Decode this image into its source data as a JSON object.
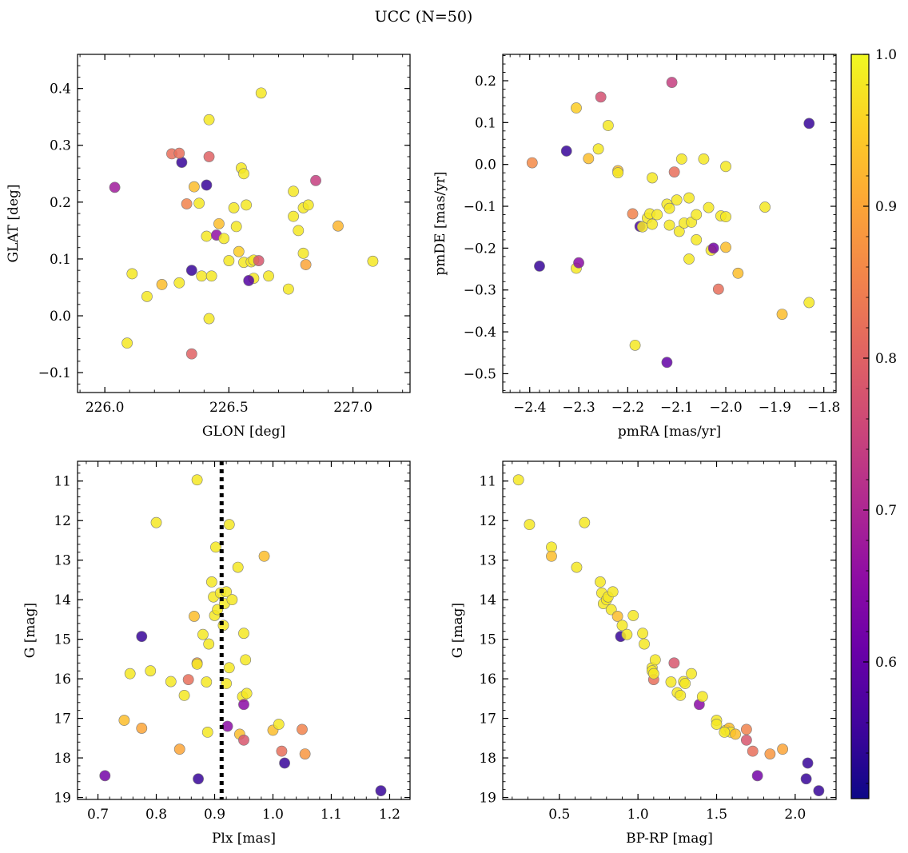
{
  "chart_data": {
    "type": "scatter",
    "title": "UCC (N=50)",
    "colorbar": {
      "colormap": "plasma",
      "range": [
        0.51,
        1.0
      ],
      "ticks": [
        "0.6",
        "0.7",
        "0.8",
        "0.9",
        "1.0"
      ],
      "tick_values": [
        0.6,
        0.7,
        0.8,
        0.9,
        1.0
      ],
      "colors": [
        "#0d0887",
        "#41049d",
        "#6a00a8",
        "#8f0da4",
        "#b12a90",
        "#cc4778",
        "#e16462",
        "#f2844b",
        "#fca636",
        "#fcce25",
        "#f0f921"
      ]
    },
    "panels": [
      {
        "id": "sky",
        "xlabel": "GLON [deg]",
        "ylabel": "GLAT [deg]",
        "xlim": [
          225.89,
          227.23
        ],
        "ylim": [
          -0.135,
          0.46
        ],
        "invert_y": false,
        "xticks": [
          "226.0",
          "226.5",
          "227.0"
        ],
        "xtick_values": [
          226.0,
          226.5,
          227.0
        ],
        "yticks": [
          "−0.1",
          "0.0",
          "0.1",
          "0.2",
          "0.3",
          "0.4"
        ],
        "ytick_values": [
          -0.1,
          0.0,
          0.1,
          0.2,
          0.3,
          0.4
        ],
        "points": [
          [
            226.04,
            0.226,
            0.68
          ],
          [
            226.09,
            -0.048,
            0.98
          ],
          [
            226.11,
            0.074,
            0.98
          ],
          [
            226.17,
            0.034,
            0.98
          ],
          [
            226.23,
            0.055,
            0.93
          ],
          [
            226.27,
            0.285,
            0.82
          ],
          [
            226.3,
            0.058,
            0.98
          ],
          [
            226.31,
            0.27,
            0.55
          ],
          [
            226.33,
            0.197,
            0.85
          ],
          [
            226.35,
            0.08,
            0.55
          ],
          [
            226.36,
            0.227,
            0.93
          ],
          [
            226.38,
            0.198,
            0.98
          ],
          [
            226.39,
            0.07,
            0.98
          ],
          [
            226.41,
            0.14,
            0.98
          ],
          [
            226.41,
            0.23,
            0.55
          ],
          [
            226.42,
            0.345,
            0.98
          ],
          [
            226.42,
            0.28,
            0.8
          ],
          [
            226.43,
            0.07,
            0.98
          ],
          [
            226.45,
            0.142,
            0.66
          ],
          [
            226.46,
            0.162,
            0.93
          ],
          [
            226.48,
            0.136,
            0.98
          ],
          [
            226.5,
            0.097,
            0.98
          ],
          [
            226.52,
            0.19,
            0.98
          ],
          [
            226.53,
            0.157,
            0.98
          ],
          [
            226.54,
            0.113,
            0.95
          ],
          [
            226.55,
            0.26,
            0.98
          ],
          [
            226.56,
            0.25,
            0.98
          ],
          [
            226.56,
            0.094,
            0.98
          ],
          [
            226.57,
            0.195,
            0.98
          ],
          [
            226.59,
            0.095,
            0.98
          ],
          [
            226.6,
            0.098,
            0.98
          ],
          [
            226.6,
            0.066,
            0.98
          ],
          [
            226.62,
            0.097,
            0.78
          ],
          [
            226.63,
            0.392,
            0.98
          ],
          [
            226.66,
            0.07,
            0.98
          ],
          [
            226.74,
            0.047,
            0.98
          ],
          [
            226.76,
            0.219,
            0.98
          ],
          [
            226.76,
            0.175,
            0.98
          ],
          [
            226.78,
            0.15,
            0.98
          ],
          [
            226.8,
            0.11,
            0.98
          ],
          [
            226.8,
            0.19,
            0.98
          ],
          [
            226.81,
            0.09,
            0.9
          ],
          [
            226.82,
            0.195,
            0.98
          ],
          [
            226.85,
            0.238,
            0.74
          ],
          [
            226.94,
            0.158,
            0.92
          ],
          [
            227.08,
            0.096,
            0.98
          ],
          [
            226.42,
            -0.005,
            0.98
          ],
          [
            226.35,
            -0.067,
            0.8
          ],
          [
            226.58,
            0.062,
            0.58
          ],
          [
            226.3,
            0.286,
            0.82
          ]
        ]
      },
      {
        "id": "pm",
        "xlabel": "pmRA [mas/yr]",
        "ylabel": "pmDE [mas/yr]",
        "xlim": [
          -2.455,
          -1.775
        ],
        "ylim": [
          -0.545,
          0.263
        ],
        "invert_y": false,
        "xticks": [
          "−2.4",
          "−2.3",
          "−2.2",
          "−2.1",
          "−2.0",
          "−1.9",
          "−1.8"
        ],
        "xtick_values": [
          -2.4,
          -2.3,
          -2.2,
          -2.1,
          -2.0,
          -1.9,
          -1.8
        ],
        "yticks": [
          "−0.5",
          "−0.4",
          "−0.3",
          "−0.2",
          "−0.1",
          "0.0",
          "0.1",
          "0.2"
        ],
        "ytick_values": [
          -0.5,
          -0.4,
          -0.3,
          -0.2,
          -0.1,
          0.0,
          0.1,
          0.2
        ],
        "points": [
          [
            -2.395,
            0.004,
            0.86
          ],
          [
            -2.38,
            -0.243,
            0.55
          ],
          [
            -2.325,
            0.032,
            0.55
          ],
          [
            -2.305,
            0.135,
            0.95
          ],
          [
            -2.305,
            -0.248,
            0.98
          ],
          [
            -2.3,
            -0.235,
            0.65
          ],
          [
            -2.28,
            0.014,
            0.93
          ],
          [
            -2.26,
            0.037,
            0.98
          ],
          [
            -2.255,
            0.161,
            0.77
          ],
          [
            -2.24,
            0.093,
            0.98
          ],
          [
            -2.22,
            -0.015,
            0.93
          ],
          [
            -2.22,
            -0.02,
            0.98
          ],
          [
            -2.19,
            -0.118,
            0.85
          ],
          [
            -2.175,
            -0.148,
            0.57
          ],
          [
            -2.17,
            -0.149,
            0.98
          ],
          [
            -2.16,
            -0.128,
            0.98
          ],
          [
            -2.155,
            -0.118,
            0.98
          ],
          [
            -2.15,
            -0.032,
            0.98
          ],
          [
            -2.15,
            -0.143,
            0.98
          ],
          [
            -2.14,
            -0.12,
            0.98
          ],
          [
            -2.12,
            -0.095,
            0.98
          ],
          [
            -2.115,
            -0.105,
            0.98
          ],
          [
            -2.115,
            -0.145,
            0.98
          ],
          [
            -2.11,
            0.196,
            0.74
          ],
          [
            -2.105,
            -0.018,
            0.82
          ],
          [
            -2.1,
            -0.085,
            0.98
          ],
          [
            -2.095,
            -0.16,
            0.98
          ],
          [
            -2.09,
            0.013,
            0.98
          ],
          [
            -2.085,
            -0.14,
            0.98
          ],
          [
            -2.075,
            -0.08,
            0.98
          ],
          [
            -2.075,
            -0.226,
            0.98
          ],
          [
            -2.07,
            -0.138,
            0.98
          ],
          [
            -2.06,
            -0.18,
            0.98
          ],
          [
            -2.06,
            -0.12,
            0.98
          ],
          [
            -2.045,
            0.013,
            0.98
          ],
          [
            -2.035,
            -0.103,
            0.98
          ],
          [
            -2.03,
            -0.205,
            0.98
          ],
          [
            -2.025,
            -0.2,
            0.62
          ],
          [
            -2.015,
            -0.298,
            0.82
          ],
          [
            -2.01,
            -0.123,
            0.98
          ],
          [
            -2.0,
            -0.125,
            0.98
          ],
          [
            -2.0,
            -0.005,
            0.98
          ],
          [
            -2.0,
            -0.198,
            0.93
          ],
          [
            -1.975,
            -0.26,
            0.93
          ],
          [
            -1.92,
            -0.102,
            0.98
          ],
          [
            -1.885,
            -0.358,
            0.93
          ],
          [
            -1.83,
            -0.33,
            0.98
          ],
          [
            -1.83,
            0.098,
            0.55
          ],
          [
            -2.12,
            -0.473,
            0.6
          ],
          [
            -2.185,
            -0.432,
            0.98
          ]
        ]
      },
      {
        "id": "plx",
        "xlabel": "Plx [mas]",
        "ylabel": "G [mag]",
        "xlim": [
          0.665,
          1.235
        ],
        "ylim": [
          10.5,
          19.05
        ],
        "invert_y": true,
        "vline": 0.912,
        "xticks": [
          "0.7",
          "0.8",
          "0.9",
          "1.0",
          "1.1",
          "1.2"
        ],
        "xtick_values": [
          0.7,
          0.8,
          0.9,
          1.0,
          1.1,
          1.2
        ],
        "yticks": [
          "11",
          "12",
          "13",
          "14",
          "15",
          "16",
          "17",
          "18",
          "19"
        ],
        "ytick_values": [
          11,
          12,
          13,
          14,
          15,
          16,
          17,
          18,
          19
        ],
        "points": [
          [
            0.712,
            18.45,
            0.62
          ],
          [
            0.745,
            17.05,
            0.93
          ],
          [
            0.755,
            15.87,
            0.98
          ],
          [
            0.775,
            14.93,
            0.55
          ],
          [
            0.775,
            17.25,
            0.9
          ],
          [
            0.79,
            15.8,
            0.98
          ],
          [
            0.8,
            12.05,
            0.98
          ],
          [
            0.825,
            16.07,
            0.98
          ],
          [
            0.84,
            17.78,
            0.9
          ],
          [
            0.848,
            16.42,
            0.98
          ],
          [
            0.855,
            16.02,
            0.82
          ],
          [
            0.865,
            14.42,
            0.93
          ],
          [
            0.87,
            10.97,
            0.98
          ],
          [
            0.87,
            15.6,
            0.88
          ],
          [
            0.87,
            15.63,
            0.98
          ],
          [
            0.872,
            18.53,
            0.55
          ],
          [
            0.88,
            14.88,
            0.98
          ],
          [
            0.886,
            16.08,
            0.98
          ],
          [
            0.888,
            17.35,
            0.98
          ],
          [
            0.89,
            15.12,
            0.98
          ],
          [
            0.895,
            13.55,
            0.98
          ],
          [
            0.898,
            13.93,
            0.98
          ],
          [
            0.9,
            14.4,
            0.98
          ],
          [
            0.902,
            12.67,
            0.98
          ],
          [
            0.905,
            14.25,
            0.98
          ],
          [
            0.91,
            13.83,
            0.98
          ],
          [
            0.915,
            14.65,
            0.98
          ],
          [
            0.917,
            14.1,
            0.98
          ],
          [
            0.92,
            13.8,
            0.98
          ],
          [
            0.92,
            16.12,
            0.98
          ],
          [
            0.922,
            17.2,
            0.65
          ],
          [
            0.925,
            15.72,
            0.98
          ],
          [
            0.925,
            12.1,
            0.98
          ],
          [
            0.93,
            14.0,
            0.98
          ],
          [
            0.94,
            13.18,
            0.98
          ],
          [
            0.943,
            17.4,
            0.93
          ],
          [
            0.948,
            16.45,
            0.98
          ],
          [
            0.95,
            14.85,
            0.98
          ],
          [
            0.95,
            17.55,
            0.78
          ],
          [
            0.95,
            16.65,
            0.65
          ],
          [
            0.953,
            15.52,
            0.98
          ],
          [
            0.955,
            16.37,
            0.98
          ],
          [
            0.985,
            12.9,
            0.93
          ],
          [
            1.0,
            17.3,
            0.93
          ],
          [
            1.01,
            17.15,
            0.98
          ],
          [
            1.015,
            17.83,
            0.82
          ],
          [
            1.02,
            18.13,
            0.55
          ],
          [
            1.05,
            17.28,
            0.85
          ],
          [
            1.055,
            17.9,
            0.88
          ],
          [
            1.185,
            18.83,
            0.55
          ]
        ]
      },
      {
        "id": "cmd",
        "xlabel": "BP-RP [mag]",
        "ylabel": "G [mag]",
        "xlim": [
          0.14,
          2.26
        ],
        "ylim": [
          10.5,
          19.05
        ],
        "invert_y": true,
        "xticks": [
          "0.5",
          "1.0",
          "1.5",
          "2.0"
        ],
        "xtick_values": [
          0.5,
          1.0,
          1.5,
          2.0
        ],
        "yticks": [
          "11",
          "12",
          "13",
          "14",
          "15",
          "16",
          "17",
          "18",
          "19"
        ],
        "ytick_values": [
          11,
          12,
          13,
          14,
          15,
          16,
          17,
          18,
          19
        ],
        "points": [
          [
            0.24,
            10.97,
            0.98
          ],
          [
            0.31,
            12.1,
            0.98
          ],
          [
            0.45,
            12.67,
            0.98
          ],
          [
            0.45,
            12.9,
            0.93
          ],
          [
            0.61,
            13.18,
            0.98
          ],
          [
            0.66,
            12.05,
            0.98
          ],
          [
            0.76,
            13.55,
            0.98
          ],
          [
            0.77,
            13.83,
            0.98
          ],
          [
            0.78,
            14.1,
            0.98
          ],
          [
            0.8,
            14.0,
            0.98
          ],
          [
            0.81,
            13.93,
            0.98
          ],
          [
            0.83,
            14.25,
            0.98
          ],
          [
            0.84,
            13.8,
            0.98
          ],
          [
            0.87,
            14.42,
            0.93
          ],
          [
            0.89,
            14.93,
            0.55
          ],
          [
            0.9,
            14.65,
            0.98
          ],
          [
            0.93,
            14.88,
            0.98
          ],
          [
            0.97,
            14.4,
            0.98
          ],
          [
            1.03,
            14.85,
            0.98
          ],
          [
            1.04,
            15.12,
            0.98
          ],
          [
            1.09,
            15.72,
            0.98
          ],
          [
            1.09,
            15.8,
            0.98
          ],
          [
            1.1,
            16.02,
            0.82
          ],
          [
            1.1,
            15.87,
            0.98
          ],
          [
            1.11,
            15.52,
            0.98
          ],
          [
            1.21,
            16.08,
            0.98
          ],
          [
            1.23,
            15.6,
            0.78
          ],
          [
            1.25,
            16.35,
            0.98
          ],
          [
            1.27,
            16.42,
            0.98
          ],
          [
            1.29,
            16.07,
            0.98
          ],
          [
            1.3,
            16.12,
            0.98
          ],
          [
            1.34,
            15.87,
            0.98
          ],
          [
            1.39,
            16.65,
            0.65
          ],
          [
            1.41,
            16.45,
            0.98
          ],
          [
            1.5,
            17.05,
            0.98
          ],
          [
            1.5,
            17.15,
            0.98
          ],
          [
            1.56,
            17.3,
            0.98
          ],
          [
            1.58,
            17.25,
            0.93
          ],
          [
            1.59,
            17.35,
            0.98
          ],
          [
            1.62,
            17.4,
            0.93
          ],
          [
            1.69,
            17.28,
            0.85
          ],
          [
            1.69,
            17.55,
            0.78
          ],
          [
            1.73,
            17.83,
            0.82
          ],
          [
            1.76,
            18.45,
            0.62
          ],
          [
            1.84,
            17.9,
            0.88
          ],
          [
            1.92,
            17.78,
            0.9
          ],
          [
            2.07,
            18.53,
            0.55
          ],
          [
            2.08,
            18.13,
            0.55
          ],
          [
            2.15,
            18.83,
            0.55
          ],
          [
            1.55,
            17.35,
            0.98
          ]
        ]
      }
    ]
  }
}
